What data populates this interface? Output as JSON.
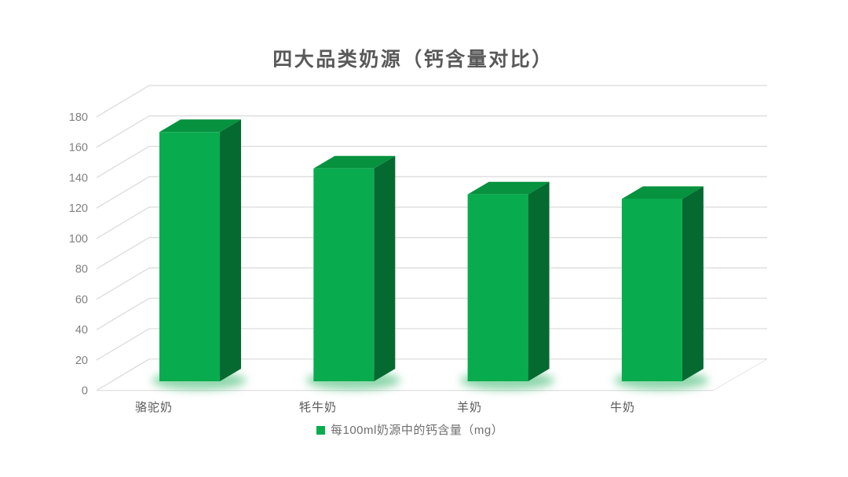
{
  "title": "四大品类奶源（钙含量对比）",
  "legend": {
    "swatch_color": "#08AC4E",
    "label": "每100ml奶源中的钙含量（mg）"
  },
  "chart_data": {
    "type": "bar",
    "projection": "3d-oblique",
    "title": "四大品类奶源（钙含量对比）",
    "categories": [
      "骆驼奶",
      "牦牛奶",
      "羊奶",
      "牛奶"
    ],
    "values": [
      164,
      140,
      123,
      120
    ],
    "series": [
      {
        "name": "每100ml奶源中的钙含量（mg）",
        "values": [
          164,
          140,
          123,
          120
        ]
      }
    ],
    "xlabel": "",
    "ylabel": "",
    "ylim": [
      0,
      180
    ],
    "ytick_interval": 20,
    "yticks": [
      0,
      20,
      40,
      60,
      80,
      100,
      120,
      140,
      160,
      180
    ],
    "grid": true,
    "legend_position": "bottom-center",
    "colors": {
      "bar_front": "#08AC4E",
      "bar_top": "#06923E",
      "bar_side": "#046A30",
      "base_glow": "#34B669",
      "gridline": "#D9D9D9",
      "floor_edge": "#DCDCDC",
      "title_text": "#595959",
      "tick_text": "#7F7F7F",
      "category_text": "#595959",
      "legend_text": "#6F6F6F",
      "background": "#FFFFFF"
    }
  }
}
